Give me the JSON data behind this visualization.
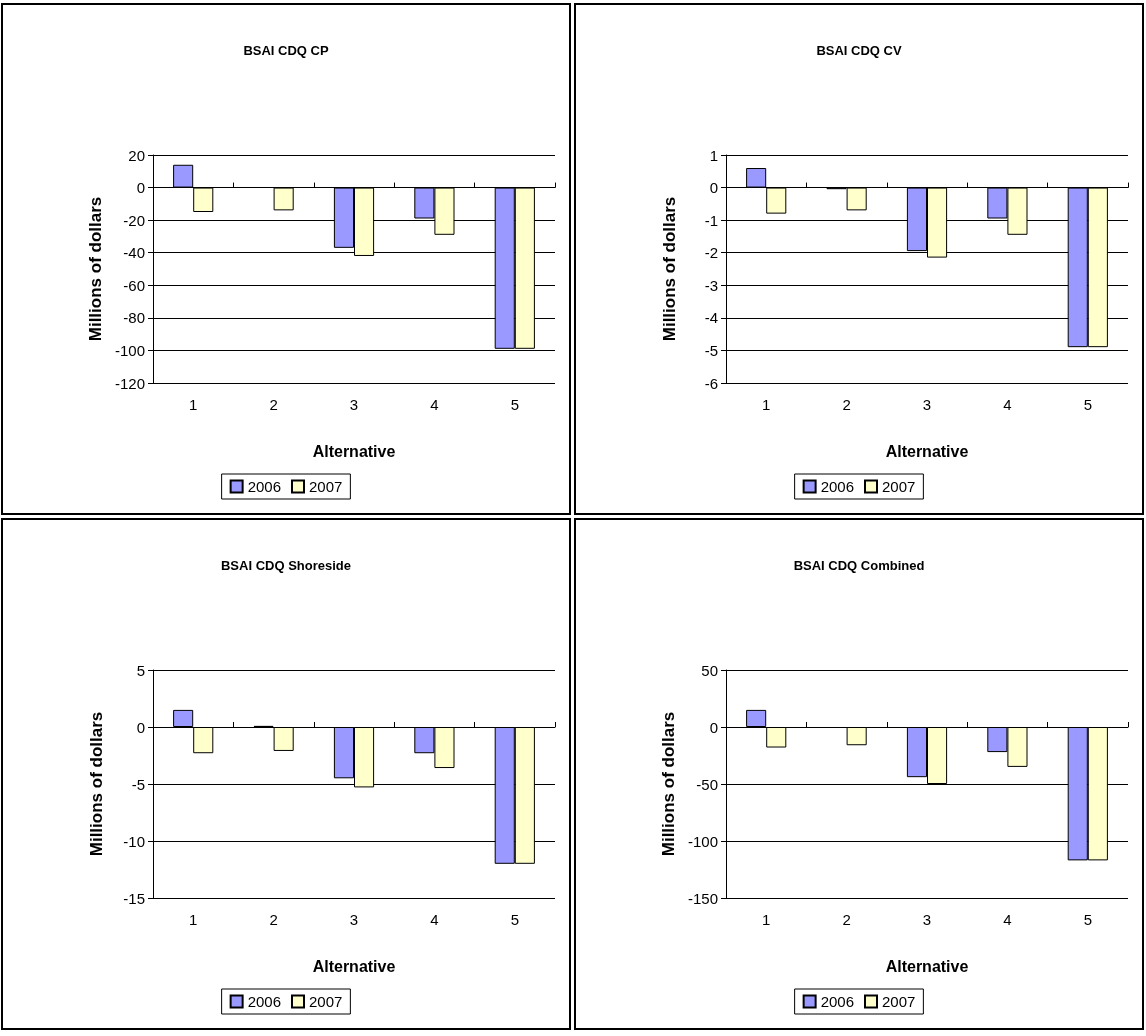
{
  "chart_data": [
    {
      "type": "bar",
      "title": "BSAI CDQ CP",
      "xlabel": "Alternative",
      "ylabel": "Millions of dollars",
      "categories": [
        "1",
        "2",
        "3",
        "4",
        "5"
      ],
      "ylim": [
        -120,
        20
      ],
      "yticks": [
        -120,
        -100,
        -80,
        -60,
        -40,
        -20,
        0,
        20
      ],
      "grid": "y",
      "legend": "bottom",
      "series": [
        {
          "name": "2006",
          "color": "#9999ff",
          "values": [
            14,
            null,
            -37,
            -19,
            -99
          ]
        },
        {
          "name": "2007",
          "color": "#ffffcc",
          "values": [
            -15,
            -14,
            -42,
            -29,
            -99
          ]
        }
      ]
    },
    {
      "type": "bar",
      "title": "BSAI CDQ CV",
      "xlabel": "Alternative",
      "ylabel": "Millions of dollars",
      "categories": [
        "1",
        "2",
        "3",
        "4",
        "5"
      ],
      "ylim": [
        -6,
        1
      ],
      "yticks": [
        -6,
        -5,
        -4,
        -3,
        -2,
        -1,
        0,
        1
      ],
      "grid": "y",
      "legend": "bottom",
      "series": [
        {
          "name": "2006",
          "color": "#9999ff",
          "values": [
            0.6,
            -0.05,
            -1.95,
            -0.95,
            -4.9
          ]
        },
        {
          "name": "2007",
          "color": "#ffffcc",
          "values": [
            -0.8,
            -0.7,
            -2.15,
            -1.45,
            -4.9
          ]
        }
      ]
    },
    {
      "type": "bar",
      "title": "BSAI CDQ Shoreside",
      "xlabel": "Alternative",
      "ylabel": "Millions of dollars",
      "categories": [
        "1",
        "2",
        "3",
        "4",
        "5"
      ],
      "ylim": [
        -15,
        5
      ],
      "yticks": [
        -15,
        -10,
        -5,
        0,
        5
      ],
      "grid": "y",
      "legend": "bottom",
      "series": [
        {
          "name": "2006",
          "color": "#9999ff",
          "values": [
            1.5,
            0.1,
            -4.5,
            -2.3,
            -12
          ]
        },
        {
          "name": "2007",
          "color": "#ffffcc",
          "values": [
            -2.3,
            -2.1,
            -5.3,
            -3.6,
            -12
          ]
        }
      ]
    },
    {
      "type": "bar",
      "title": "BSAI CDQ Combined",
      "xlabel": "Alternative",
      "ylabel": "Millions of dollars",
      "categories": [
        "1",
        "2",
        "3",
        "4",
        "5"
      ],
      "ylim": [
        -150,
        50
      ],
      "yticks": [
        -150,
        -100,
        -50,
        0,
        50
      ],
      "grid": "y",
      "legend": "bottom",
      "series": [
        {
          "name": "2006",
          "color": "#9999ff",
          "values": [
            15,
            null,
            -44,
            -22,
            -117
          ]
        },
        {
          "name": "2007",
          "color": "#ffffcc",
          "values": [
            -18,
            -16,
            -50,
            -35,
            -117
          ]
        }
      ]
    }
  ]
}
